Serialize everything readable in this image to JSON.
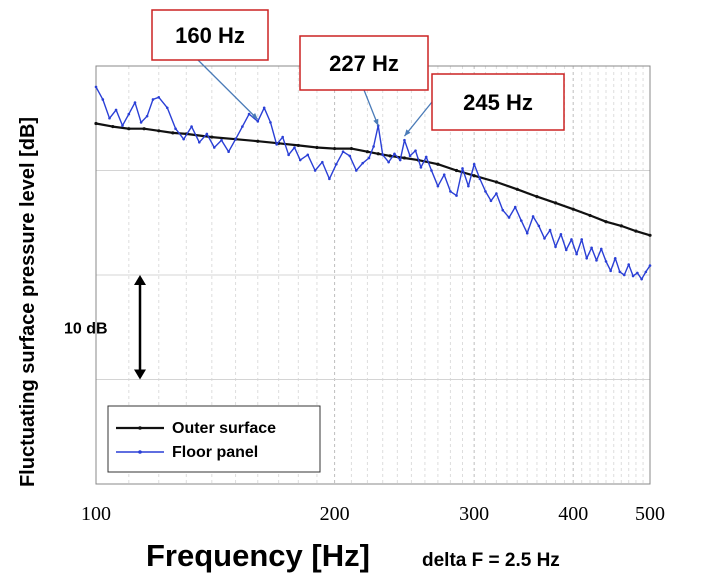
{
  "chart_data": {
    "type": "line",
    "xlabel": "Frequency [Hz]",
    "xlabel_note": "delta F = 2.5 Hz",
    "ylabel": "Fluctuating surface pressure level [dB]",
    "xscale": "log",
    "xlim": [
      100,
      500
    ],
    "ylim": [
      0,
      40
    ],
    "x_ticks": [
      "100",
      "200",
      "300",
      "400",
      "500"
    ],
    "y_ticks_labeled": false,
    "grid": true,
    "legend_position": "bottom-left",
    "scale_bar": {
      "label": "10 dB",
      "from": 10,
      "to": 20
    },
    "series": [
      {
        "name": "Outer surface",
        "color": "#111111",
        "x": [
          100,
          105,
          110,
          115,
          120,
          125,
          130,
          140,
          150,
          160,
          170,
          180,
          190,
          200,
          210,
          220,
          227,
          235,
          245,
          255,
          270,
          285,
          300,
          320,
          340,
          360,
          380,
          400,
          420,
          440,
          460,
          480,
          500
        ],
        "y": [
          34.5,
          34.2,
          34.0,
          34.0,
          33.8,
          33.6,
          33.5,
          33.2,
          33.0,
          32.8,
          32.6,
          32.4,
          32.2,
          32.1,
          32.1,
          31.8,
          31.6,
          31.4,
          31.2,
          31.0,
          30.6,
          30.0,
          29.5,
          28.9,
          28.2,
          27.5,
          26.9,
          26.3,
          25.7,
          25.1,
          24.7,
          24.2,
          23.8
        ]
      },
      {
        "name": "Floor panel",
        "color": "#2a3fd6",
        "x": [
          100,
          102,
          104,
          106,
          108,
          110,
          112,
          114,
          116,
          118,
          120,
          123,
          126,
          129,
          132,
          135,
          138,
          141,
          144,
          147,
          150,
          153,
          156,
          160,
          163,
          166,
          169,
          172,
          175,
          178,
          181,
          185,
          189,
          193,
          197,
          201,
          205,
          209,
          213,
          217,
          221,
          224,
          227,
          230,
          234,
          238,
          242,
          245,
          249,
          253,
          257,
          261,
          265,
          270,
          275,
          280,
          285,
          290,
          295,
          300,
          305,
          310,
          315,
          320,
          326,
          332,
          338,
          344,
          350,
          356,
          362,
          368,
          374,
          380,
          386,
          392,
          398,
          404,
          410,
          416,
          422,
          428,
          434,
          440,
          446,
          452,
          458,
          464,
          470,
          476,
          482,
          488,
          494,
          500
        ],
        "y": [
          38.0,
          36.8,
          35.0,
          35.8,
          34.3,
          35.4,
          36.5,
          34.6,
          35.2,
          36.8,
          37.0,
          36.0,
          34.0,
          33.0,
          34.2,
          32.7,
          33.5,
          32.2,
          32.9,
          31.8,
          33.0,
          34.2,
          35.4,
          34.7,
          36.0,
          34.6,
          32.5,
          33.2,
          31.5,
          32.2,
          31.0,
          31.5,
          30.0,
          30.8,
          29.2,
          30.6,
          31.8,
          31.4,
          30.0,
          30.7,
          31.2,
          32.3,
          34.3,
          31.5,
          30.8,
          31.6,
          31.0,
          32.9,
          31.4,
          31.9,
          30.3,
          31.3,
          30.0,
          28.5,
          29.6,
          28.0,
          27.6,
          30.2,
          28.5,
          30.6,
          29.2,
          28.0,
          27.1,
          27.8,
          26.2,
          25.5,
          26.5,
          25.2,
          24.0,
          25.6,
          24.7,
          23.5,
          24.3,
          22.7,
          23.9,
          22.4,
          23.4,
          22.0,
          23.4,
          21.6,
          22.6,
          21.4,
          22.5,
          21.3,
          20.4,
          21.6,
          20.3,
          20.0,
          21.0,
          19.9,
          20.2,
          19.6,
          20.3,
          20.9
        ]
      }
    ],
    "annotations": [
      {
        "label": "160 Hz",
        "x": 160,
        "y": 34.6
      },
      {
        "label": "227 Hz",
        "x": 227,
        "y": 34.0
      },
      {
        "label": "245 Hz",
        "x": 245,
        "y": 33.0
      }
    ],
    "annotation_border_color": "#cc2222",
    "arrow_color": "#4a7bb8"
  }
}
